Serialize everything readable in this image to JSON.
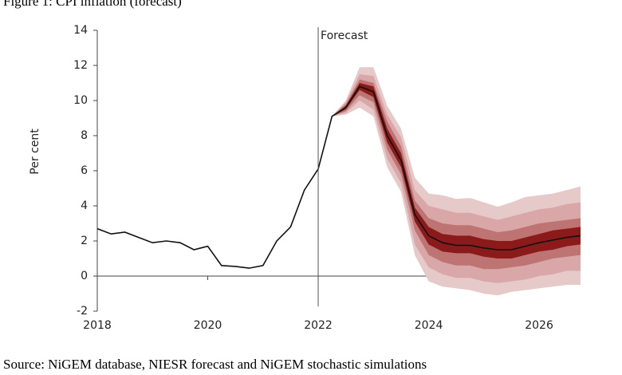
{
  "chart_data": {
    "type": "fan",
    "title": "Figure 1: CPI inflation (forecast)",
    "ylabel": "Per cent",
    "source": "Source: NiGEM database, NIESR forecast and NiGEM stochastic simulations",
    "annotation": {
      "text": "Forecast",
      "x": 2022
    },
    "xlim": [
      2018,
      2026.75
    ],
    "ylim": [
      -2,
      14
    ],
    "xticks": [
      2018,
      2020,
      2022,
      2024,
      2026
    ],
    "yticks": [
      -2,
      0,
      2,
      4,
      6,
      8,
      10,
      12,
      14
    ],
    "series": [
      {
        "color": "#111111",
        "x": [
          2018,
          2018.25,
          2018.5,
          2018.75,
          2019,
          2019.25,
          2019.5,
          2019.75,
          2020,
          2020.25,
          2020.5,
          2020.75,
          2021,
          2021.25,
          2021.5,
          2021.75,
          2022,
          2022.25,
          2022.5,
          2022.75,
          2023,
          2023.25,
          2023.5,
          2023.75,
          2024,
          2024.25,
          2024.5,
          2024.75,
          2025,
          2025.25,
          2025.5,
          2025.75,
          2026,
          2026.25,
          2026.5,
          2026.75
        ],
        "values": [
          2.7,
          2.4,
          2.5,
          2.2,
          1.9,
          2.0,
          1.9,
          1.5,
          1.7,
          0.6,
          0.55,
          0.45,
          0.6,
          2.0,
          2.8,
          4.9,
          6.1,
          9.1,
          9.6,
          10.8,
          10.5,
          8.0,
          6.6,
          3.5,
          2.3,
          1.9,
          1.75,
          1.75,
          1.6,
          1.5,
          1.5,
          1.7,
          1.9,
          2.05,
          2.2,
          2.3
        ]
      }
    ],
    "band_x": [
      2022.25,
      2022.5,
      2022.75,
      2023,
      2023.25,
      2023.5,
      2023.75,
      2024,
      2024.25,
      2024.5,
      2024.75,
      2025,
      2025.25,
      2025.5,
      2025.75,
      2026,
      2026.25,
      2026.5,
      2026.75
    ],
    "bands": [
      {
        "color": "#e6c9c9",
        "upper": [
          9.1,
          10,
          11.9,
          11.9,
          9.7,
          8.4,
          5.6,
          4.7,
          4.6,
          4.4,
          4.45,
          4.2,
          3.95,
          4.2,
          4.5,
          4.6,
          4.7,
          4.9,
          5.1
        ],
        "lower": [
          9.1,
          9.2,
          9.6,
          9.1,
          6.2,
          4.8,
          1.2,
          -0.3,
          -0.6,
          -0.7,
          -0.8,
          -1.0,
          -1.1,
          -0.9,
          -0.8,
          -0.7,
          -0.6,
          -0.5,
          -0.5
        ]
      },
      {
        "color": "#d9a7a7",
        "upper": [
          9.1,
          9.9,
          11.5,
          11.4,
          9.2,
          7.9,
          4.9,
          4.0,
          3.8,
          3.6,
          3.6,
          3.4,
          3.2,
          3.4,
          3.6,
          3.8,
          3.9,
          4.1,
          4.2
        ],
        "lower": [
          9.1,
          9.3,
          10.0,
          9.5,
          6.7,
          5.3,
          1.8,
          0.5,
          0.1,
          -0.1,
          -0.1,
          -0.3,
          -0.4,
          -0.3,
          -0.2,
          0.0,
          0.1,
          0.3,
          0.3
        ]
      },
      {
        "color": "#bf7474",
        "upper": [
          9.1,
          9.8,
          11.2,
          11.0,
          8.8,
          7.4,
          4.3,
          3.3,
          3.0,
          2.9,
          2.9,
          2.7,
          2.5,
          2.6,
          2.8,
          3.0,
          3.1,
          3.2,
          3.3
        ],
        "lower": [
          9.1,
          9.4,
          10.3,
          9.9,
          7.2,
          5.8,
          2.6,
          1.2,
          0.8,
          0.6,
          0.6,
          0.4,
          0.4,
          0.5,
          0.6,
          0.8,
          1.0,
          1.1,
          1.2
        ]
      },
      {
        "color": "#8b1a1a",
        "upper": [
          9.1,
          9.7,
          11.0,
          10.8,
          8.4,
          7.0,
          3.9,
          2.8,
          2.4,
          2.3,
          2.3,
          2.1,
          2.0,
          2.0,
          2.2,
          2.4,
          2.6,
          2.7,
          2.8
        ],
        "lower": [
          9.1,
          9.5,
          10.6,
          10.2,
          7.6,
          6.2,
          3.1,
          1.8,
          1.4,
          1.3,
          1.3,
          1.1,
          1.0,
          1.0,
          1.2,
          1.4,
          1.5,
          1.7,
          1.8
        ]
      }
    ]
  }
}
